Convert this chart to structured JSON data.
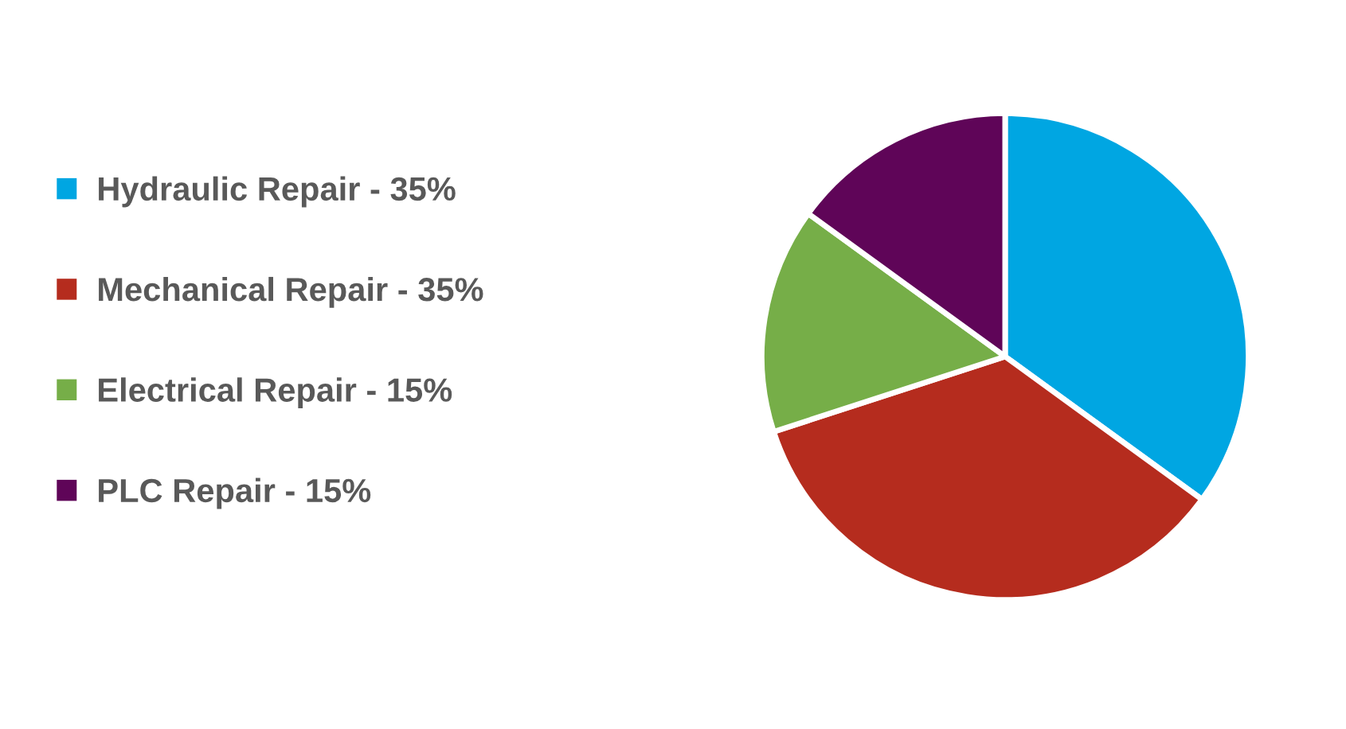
{
  "chart_data": {
    "type": "pie",
    "categories": [
      "Hydraulic Repair - 35%",
      "Mechanical Repair - 35%",
      "Electrical Repair - 15%",
      "PLC Repair - 15%"
    ],
    "values": [
      35,
      35,
      15,
      15
    ],
    "colors": [
      "#00a6e2",
      "#b52c1e",
      "#76ae48",
      "#5f0558"
    ],
    "legend": "left"
  }
}
